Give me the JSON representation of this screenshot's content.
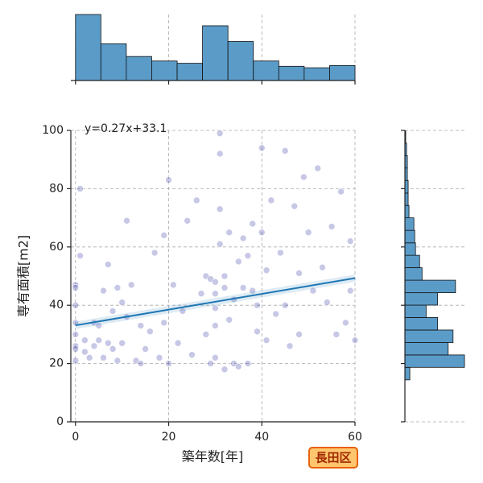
{
  "chart_data": [
    {
      "type": "scatter",
      "xlabel": "築年数[年]",
      "ylabel": "専有面積[m2]",
      "badge": "長田区",
      "xlim": [
        -1,
        60
      ],
      "ylim": [
        0,
        100
      ],
      "xticks": [
        0,
        20,
        40,
        60
      ],
      "yticks": [
        0,
        20,
        40,
        60,
        80,
        100
      ],
      "grid": true,
      "color": "#00008b",
      "x": [
        0,
        0,
        0,
        0,
        0,
        0,
        0,
        0,
        1,
        1,
        2,
        2,
        3,
        4,
        4,
        5,
        5,
        6,
        6,
        7,
        7,
        8,
        8,
        9,
        9,
        10,
        10,
        11,
        11,
        12,
        13,
        14,
        14,
        15,
        16,
        17,
        18,
        19,
        19,
        20,
        20,
        21,
        22,
        23,
        24,
        25,
        26,
        27,
        28,
        28,
        29,
        29,
        30,
        30,
        30,
        30,
        30,
        31,
        31,
        31,
        31,
        32,
        32,
        32,
        33,
        33,
        34,
        34,
        35,
        35,
        36,
        36,
        37,
        37,
        38,
        38,
        39,
        39,
        40,
        40,
        41,
        41,
        42,
        43,
        44,
        45,
        45,
        46,
        47,
        48,
        48,
        49,
        50,
        51,
        52,
        53,
        54,
        55,
        56,
        57,
        58,
        59,
        59,
        60
      ],
      "y": [
        47,
        46,
        40,
        34,
        30,
        26,
        25,
        21,
        80,
        57,
        28,
        24,
        22,
        34,
        26,
        33,
        28,
        22,
        45,
        54,
        27,
        25,
        38,
        46,
        21,
        41,
        27,
        69,
        36,
        47,
        21,
        20,
        33,
        25,
        31,
        58,
        22,
        64,
        34,
        20,
        83,
        47,
        27,
        38,
        69,
        23,
        76,
        44,
        30,
        50,
        49,
        20,
        48,
        44,
        39,
        33,
        22,
        92,
        61,
        73,
        99,
        50,
        46,
        18,
        65,
        35,
        42,
        20,
        55,
        19,
        63,
        46,
        20,
        57,
        68,
        45,
        40,
        31,
        94,
        65,
        52,
        28,
        76,
        37,
        58,
        93,
        40,
        26,
        74,
        51,
        30,
        84,
        65,
        45,
        87,
        53,
        41,
        67,
        30,
        79,
        34,
        62,
        45,
        28
      ],
      "regression": {
        "label": "y=0.27x+33.1",
        "slope": 0.27,
        "intercept": 33.1,
        "color": "#1f77b4",
        "label_color": "#0000cc"
      }
    },
    {
      "type": "histogram",
      "orientation": "vertical",
      "color": "#5b9bc8",
      "bins": [
        0,
        5.45,
        10.91,
        16.36,
        21.82,
        27.27,
        32.73,
        38.18,
        43.64,
        49.09,
        54.55,
        60
      ],
      "values": [
        88,
        49,
        32,
        26,
        23,
        73,
        52,
        26,
        19,
        17,
        20
      ],
      "xlim": [
        -1,
        60
      ],
      "ylim": [
        0,
        88
      ],
      "xticks": [
        0,
        20,
        40,
        60
      ],
      "grid": true
    },
    {
      "type": "histogram",
      "orientation": "horizontal",
      "color": "#5b9bc8",
      "bins": [
        14.4,
        18.7,
        22.95,
        27.2,
        31.5,
        35.8,
        40.05,
        44.3,
        48.6,
        52.9,
        57.15,
        61.4,
        65.7,
        70.0,
        74.25,
        78.5,
        82.8,
        87.1,
        91.35,
        95.6,
        99.9
      ],
      "values": [
        6,
        73,
        53,
        59,
        40,
        26,
        40,
        62,
        21,
        18,
        13,
        12,
        11,
        5,
        4,
        4,
        3,
        3,
        2,
        1
      ],
      "ylim": [
        0,
        100
      ],
      "xlim": [
        0,
        74
      ],
      "yticks": [
        0,
        20,
        40,
        60,
        80,
        100
      ],
      "grid": true
    }
  ]
}
